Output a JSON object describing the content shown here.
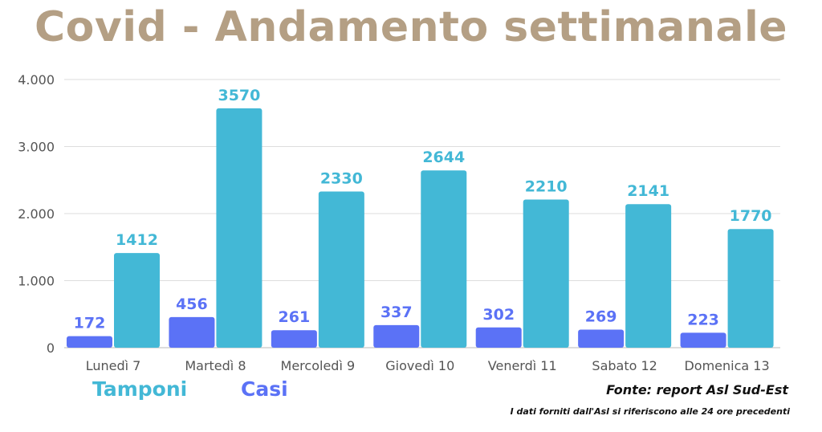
{
  "title": "Covid - Andamento settimanale",
  "colors": {
    "tamponi": "#43b8d6",
    "casi": "#5b72f6",
    "title": "#b49f84",
    "grid": "#dddddd",
    "axis": "#555555"
  },
  "legend": {
    "tamponi": "Tamponi",
    "casi": "Casi"
  },
  "footer": {
    "source": "Fonte: report Asl Sud-Est",
    "note": "I dati forniti dall'Asl si riferiscono alle 24 ore precedenti"
  },
  "chart_data": {
    "type": "bar",
    "categories": [
      "Lunedì 7",
      "Martedì 8",
      "Mercoledì 9",
      "Giovedì 10",
      "Venerdì 11",
      "Sabato 12",
      "Domenica 13"
    ],
    "series": [
      {
        "name": "Casi",
        "values": [
          172,
          456,
          261,
          337,
          302,
          269,
          223
        ]
      },
      {
        "name": "Tamponi",
        "values": [
          1412,
          3570,
          2330,
          2644,
          2210,
          2141,
          1770
        ]
      }
    ],
    "y_ticks": [
      {
        "value": 0,
        "label": "0"
      },
      {
        "value": 1000,
        "label": "1.000"
      },
      {
        "value": 2000,
        "label": "2.000"
      },
      {
        "value": 3000,
        "label": "3.000"
      },
      {
        "value": 4000,
        "label": "4.000"
      }
    ],
    "ylim": [
      0,
      4000
    ],
    "grid": true,
    "legend_position": "bottom-left"
  }
}
